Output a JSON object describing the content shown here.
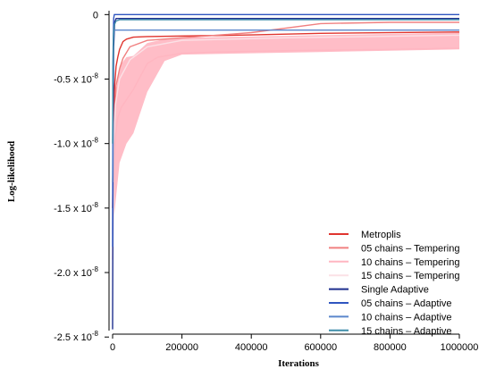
{
  "chart_data": {
    "type": "line",
    "xlabel": "Iterations",
    "ylabel": "Log-likelihood",
    "xlim": [
      0,
      1000000
    ],
    "ylim": [
      -2.45e-08,
      3e-10
    ],
    "x_ticks": [
      0,
      200000,
      400000,
      600000,
      800000,
      1000000
    ],
    "x_tick_labels": [
      "0",
      "200000",
      "400000",
      "600000",
      "800000",
      "1000000"
    ],
    "y_ticks": [
      0,
      -5e-09,
      -1e-08,
      -1.5e-08,
      -2e-08,
      -2.5e-08
    ],
    "y_tick_labels": [
      {
        "mantissa": "0",
        "exp": ""
      },
      {
        "mantissa": "-0.5 x 10",
        "exp": "-8"
      },
      {
        "mantissa": "-1.0 x 10",
        "exp": "-8"
      },
      {
        "mantissa": "-1.5 x 10",
        "exp": "-8"
      },
      {
        "mantissa": "-2.0 x 10",
        "exp": "-8"
      },
      {
        "mantissa": "-2.5 x 10",
        "exp": "-8"
      }
    ],
    "grid": false,
    "legend_position": "bottom-right",
    "series": [
      {
        "name": "Metroplis",
        "color": "#e0352f",
        "x": [
          0,
          3000,
          6000,
          10000,
          15000,
          20000,
          25000,
          30000,
          40000,
          60000,
          100000,
          400000,
          600000,
          1000000
        ],
        "y": [
          -1.5e-08,
          -8e-09,
          -5.5e-09,
          -4e-09,
          -3.3e-09,
          -2.7e-09,
          -2.4e-09,
          -2.1e-09,
          -1.9e-09,
          -1.75e-09,
          -1.7e-09,
          -1.58e-09,
          -1.45e-09,
          -1.35e-09
        ]
      },
      {
        "name": "05 chains – Tempering",
        "color": "#f08080",
        "x": [
          0,
          5000,
          10000,
          20000,
          30000,
          50000,
          100000,
          200000,
          400000,
          600000,
          800000,
          1000000
        ],
        "y": [
          -1.3e-08,
          -8e-09,
          -5.5e-09,
          -4.2e-09,
          -3.4e-09,
          -2.5e-09,
          -2e-09,
          -1.8e-09,
          -1.4e-09,
          -7e-10,
          -6e-10,
          -6e-10
        ]
      },
      {
        "name": "10 chains – Tempering",
        "color": "#ffb6c1",
        "x": [
          0,
          2000,
          4000,
          8000,
          15000,
          25000,
          40000,
          60000,
          80000,
          100000,
          130000,
          200000,
          300000,
          500000,
          800000,
          1000000
        ],
        "y": [
          -1.9e-08,
          -1.45e-08,
          -1.15e-08,
          -9.5e-09,
          -8e-09,
          -7.2e-09,
          -6.6e-09,
          -5.8e-09,
          -4.8e-09,
          -3.8e-09,
          -3.3e-09,
          -3e-09,
          -2.9e-09,
          -2.8e-09,
          -2.7e-09,
          -2.6e-09
        ]
      },
      {
        "name": "15 chains – Tempering",
        "color": "#fbe1e6",
        "x": [
          0,
          3000,
          8000,
          20000,
          50000,
          100000,
          200000,
          500000,
          1000000
        ],
        "y": [
          -1.7e-08,
          -1e-08,
          -7e-09,
          -5e-09,
          -3.5e-09,
          -2.5e-09,
          -2e-09,
          -1.8e-09,
          -1.6e-09
        ]
      },
      {
        "name": "Single Adaptive",
        "color": "#1e2f8e",
        "x": [
          0,
          800,
          1500,
          3000,
          6000,
          10000,
          1000000
        ],
        "y": [
          -2.44e-08,
          -1.6e-08,
          -8e-09,
          -2.5e-09,
          -6e-10,
          -3e-10,
          -3e-10
        ]
      },
      {
        "name": "05 chains – Adaptive",
        "color": "#2f55c0",
        "x": [
          0,
          800,
          1500,
          3000,
          5000,
          1000000
        ],
        "y": [
          -1.8e-08,
          -8e-09,
          -2.5e-09,
          -3e-10,
          0.0,
          0.0
        ]
      },
      {
        "name": "10 chains – Adaptive",
        "color": "#5b86cc",
        "x": [
          0,
          800,
          2000,
          4000,
          8000,
          1000000
        ],
        "y": [
          -1.3e-08,
          -5.5e-09,
          -2e-09,
          -1.2e-09,
          -1.2e-09,
          -1.2e-09
        ]
      },
      {
        "name": "15 chains – Adaptive",
        "color": "#3f8eaa",
        "x": [
          0,
          1000,
          2500,
          5000,
          10000,
          20000,
          1000000
        ],
        "y": [
          -1e-08,
          -4e-09,
          -1.5e-09,
          -8e-10,
          -5e-10,
          -4e-10,
          -4e-10
        ]
      }
    ],
    "band": {
      "name": "10 chains – Tempering",
      "color": "#ffb6c1",
      "x": [
        5000,
        20000,
        40000,
        60000,
        100000,
        150000,
        200000,
        400000,
        600000,
        800000,
        1000000
      ],
      "upper": [
        -7e-09,
        -4e-09,
        -3.3e-09,
        -3.2e-09,
        -2.2e-09,
        -1.9e-09,
        -1.8e-09,
        -1.7e-09,
        -1.6e-09,
        -1.5e-09,
        -1.4e-09
      ],
      "lower": [
        -1.55e-08,
        -1.15e-08,
        -1e-08,
        -9.2e-09,
        -6e-09,
        -3.6e-09,
        -3.1e-09,
        -3e-09,
        -2.9e-09,
        -2.8e-09,
        -2.7e-09
      ]
    }
  }
}
